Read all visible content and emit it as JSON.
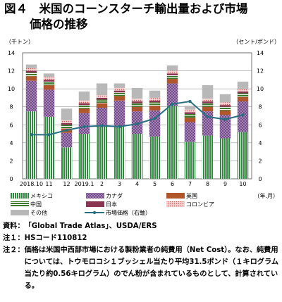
{
  "figure": {
    "title_line1": "図４　米国のコーンスターチ輸出量および市場",
    "title_line2": "価格の推移"
  },
  "chart_data": {
    "type": "bar",
    "stacked": true,
    "y_left_unit": "（千トン）",
    "y_right_unit": "（セント/ポンド）",
    "x_unit": "（年.月）",
    "ylim": [
      0,
      14
    ],
    "y_ticks": [
      0,
      2,
      4,
      6,
      8,
      10,
      12,
      14
    ],
    "y_right_ticks": [
      0,
      2,
      4,
      6,
      8,
      10,
      12,
      14
    ],
    "categories": [
      "2018.10",
      "11",
      "12",
      "2019.1",
      "2",
      "3",
      "4",
      "5",
      "6",
      "7",
      "8",
      "9",
      "10"
    ],
    "series": [
      {
        "name": "メキシコ",
        "color": "#2e8b3e",
        "pattern": "vline",
        "values": [
          7.5,
          6.9,
          3.5,
          5.0,
          5.8,
          5.9,
          5.0,
          4.7,
          8.1,
          4.1,
          4.8,
          4.5,
          5.2
        ]
      },
      {
        "name": "カナダ",
        "color": "#6a3d80",
        "pattern": "lattice",
        "values": [
          3.4,
          3.0,
          1.6,
          2.3,
          2.1,
          2.8,
          2.5,
          2.9,
          2.5,
          2.2,
          2.7,
          2.6,
          3.4
        ]
      },
      {
        "name": "英国",
        "color": "#b0562a",
        "pattern": "solid",
        "values": [
          0.5,
          0.5,
          0.5,
          0.5,
          0.5,
          0.5,
          0.5,
          0.5,
          0.5,
          0.5,
          0.5,
          0.5,
          0.5
        ]
      },
      {
        "name": "中国",
        "color": "#3d7a2e",
        "pattern": "hline",
        "values": [
          0.4,
          0.4,
          0.4,
          0.4,
          0.4,
          0.4,
          0.4,
          0.4,
          0.4,
          0.4,
          0.4,
          0.4,
          0.4
        ]
      },
      {
        "name": "日本",
        "color": "#8a3550",
        "pattern": "solid",
        "values": [
          0.2,
          0.2,
          0.2,
          0.2,
          0.2,
          0.2,
          0.2,
          0.2,
          0.2,
          0.2,
          0.2,
          0.2,
          0.2
        ]
      },
      {
        "name": "コロンビア",
        "color": "#e59a9a",
        "pattern": "dots",
        "values": [
          0.3,
          0.3,
          0.3,
          0.3,
          0.3,
          0.3,
          0.3,
          0.3,
          0.3,
          0.3,
          0.3,
          0.3,
          0.3
        ]
      },
      {
        "name": "その他",
        "color": "#b8b8b8",
        "pattern": "solid",
        "values": [
          0.4,
          0.4,
          1.3,
          1.0,
          1.3,
          0.5,
          1.2,
          0.8,
          0.6,
          0.4,
          1.5,
          0.9,
          0.8
        ]
      }
    ],
    "line": {
      "name": "市場価格（右軸）",
      "color": "#2a6e82",
      "values": [
        4.9,
        4.9,
        5.4,
        5.8,
        5.9,
        5.8,
        6.1,
        6.7,
        8.3,
        8.6,
        6.9,
        6.6,
        7.1
      ]
    },
    "grid": true
  },
  "notes": [
    {
      "label": "資料：",
      "text": "「Global Trade Atlas」、USDA/ERS"
    },
    {
      "label": "注１：",
      "text": "HSコード110812"
    },
    {
      "label": "注２：",
      "text": "価格は米国中西部市場における製粉業者の純費用（Net Cost）。なお、純費用については、トウモロコシ１ブッシェル当たり平均31.5ポンド（１キログラム当たり約0.56キログラム）のでん粉が含まれているものとして、計算されている。"
    }
  ]
}
